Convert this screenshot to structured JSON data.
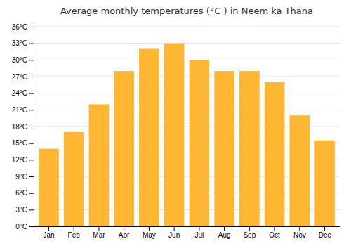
{
  "chart_data": {
    "type": "bar",
    "title": "Average monthly temperatures (°C ) in Neem ka Thana",
    "categories": [
      "Jan",
      "Feb",
      "Mar",
      "Apr",
      "May",
      "Jun",
      "Jul",
      "Aug",
      "Sep",
      "Oct",
      "Nov",
      "Dec"
    ],
    "values": [
      14,
      17,
      22,
      28,
      32,
      33,
      30,
      28,
      28,
      26,
      20,
      15.5
    ],
    "color": "#FFB733",
    "ylim": [
      0,
      36.5
    ],
    "yticks": [
      {
        "value": 0,
        "label": "0°C"
      },
      {
        "value": 3,
        "label": "3°C"
      },
      {
        "value": 6,
        "label": "6°C"
      },
      {
        "value": 9,
        "label": "9°C"
      },
      {
        "value": 12,
        "label": "12°C"
      },
      {
        "value": 15,
        "label": "15°C"
      },
      {
        "value": 18,
        "label": "18°C"
      },
      {
        "value": 21,
        "label": "21°C"
      },
      {
        "value": 24,
        "label": "24°C"
      },
      {
        "value": 27,
        "label": "27°C"
      },
      {
        "value": 30,
        "label": "30°C"
      },
      {
        "value": 33,
        "label": "33°C"
      },
      {
        "value": 36,
        "label": "36°C"
      }
    ],
    "grid": true
  }
}
